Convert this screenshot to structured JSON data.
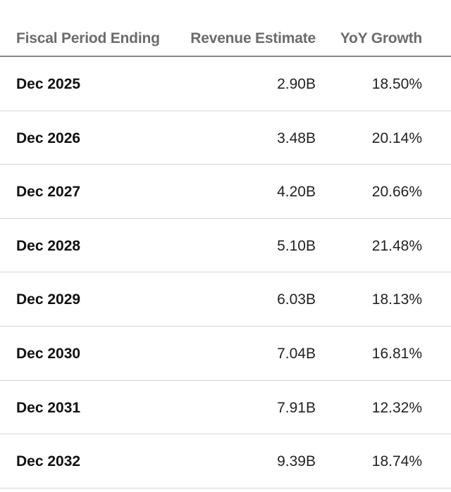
{
  "table": {
    "headers": {
      "period": "Fiscal Period Ending",
      "revenue": "Revenue Estimate",
      "growth": "YoY Growth"
    },
    "rows": [
      {
        "period": "Dec 2025",
        "revenue": "2.90B",
        "growth": "18.50%"
      },
      {
        "period": "Dec 2026",
        "revenue": "3.48B",
        "growth": "20.14%"
      },
      {
        "period": "Dec 2027",
        "revenue": "4.20B",
        "growth": "20.66%"
      },
      {
        "period": "Dec 2028",
        "revenue": "5.10B",
        "growth": "21.48%"
      },
      {
        "period": "Dec 2029",
        "revenue": "6.03B",
        "growth": "18.13%"
      },
      {
        "period": "Dec 2030",
        "revenue": "7.04B",
        "growth": "16.81%"
      },
      {
        "period": "Dec 2031",
        "revenue": "7.91B",
        "growth": "12.32%"
      },
      {
        "period": "Dec 2032",
        "revenue": "9.39B",
        "growth": "18.74%"
      }
    ]
  }
}
